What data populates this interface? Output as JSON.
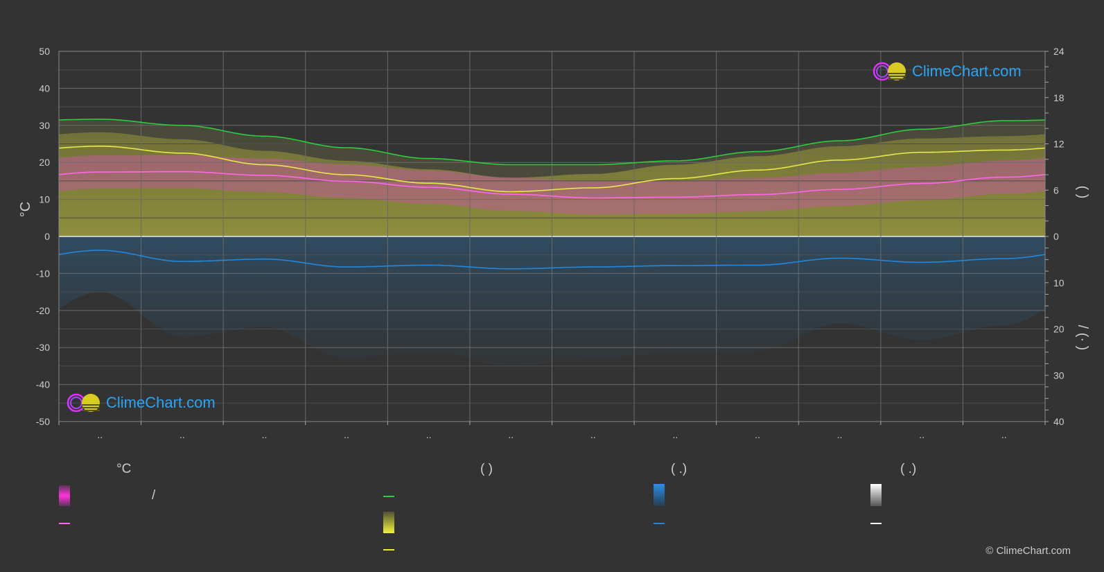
{
  "chart_data": {
    "type": "area",
    "months": [
      "..",
      "..",
      "..",
      "..",
      "..",
      "..",
      "..",
      "..",
      "..",
      "..",
      "..",
      ".."
    ],
    "left_axis": {
      "label": "°C",
      "range": [
        -50,
        50
      ],
      "ticks": [
        50,
        40,
        30,
        20,
        10,
        0,
        -10,
        -20,
        -30,
        -40,
        -50
      ]
    },
    "right_axis_top": {
      "range": [
        0,
        24
      ],
      "ticks": [
        24,
        18,
        12,
        6,
        0
      ]
    },
    "right_axis_bottom": {
      "range": [
        0,
        40
      ],
      "ticks": [
        0,
        10,
        20,
        30,
        40
      ]
    },
    "right_axis_label_top": "(   )",
    "right_axis_label_bottom": "/   (·  )",
    "series": [
      {
        "key": "daylight",
        "values": [
          15.2,
          14.4,
          13.0,
          11.5,
          10.1,
          9.3,
          9.3,
          9.8,
          11.0,
          12.4,
          13.9,
          15.0
        ]
      },
      {
        "key": "sunshine",
        "values": [
          11.7,
          10.8,
          9.3,
          8.0,
          6.9,
          5.8,
          6.3,
          7.5,
          8.6,
          9.9,
          10.9,
          11.2
        ]
      },
      {
        "key": "avg_temp",
        "values": [
          17.4,
          17.5,
          16.5,
          14.9,
          13.3,
          11.4,
          10.4,
          10.6,
          11.3,
          12.7,
          14.3,
          16.0
        ]
      },
      {
        "key": "precipitation",
        "values": [
          3.0,
          5.4,
          4.9,
          6.6,
          6.2,
          7.0,
          6.6,
          6.3,
          6.2,
          4.7,
          5.6,
          4.8
        ]
      }
    ]
  },
  "logo": {
    "text": "ClimeChart.com"
  },
  "legend": {
    "headers": [
      "°C",
      "(         )",
      "(   .)",
      "(   .)"
    ],
    "slash": "/"
  },
  "copyright": "© ClimeChart.com",
  "colors": {
    "daylight": "#2ecc40",
    "sunshine": "#e8e84a",
    "avg_temp": "#ff66ee",
    "precipitation": "#2288dd",
    "snow": "#ffffff",
    "grid": "#666666"
  }
}
